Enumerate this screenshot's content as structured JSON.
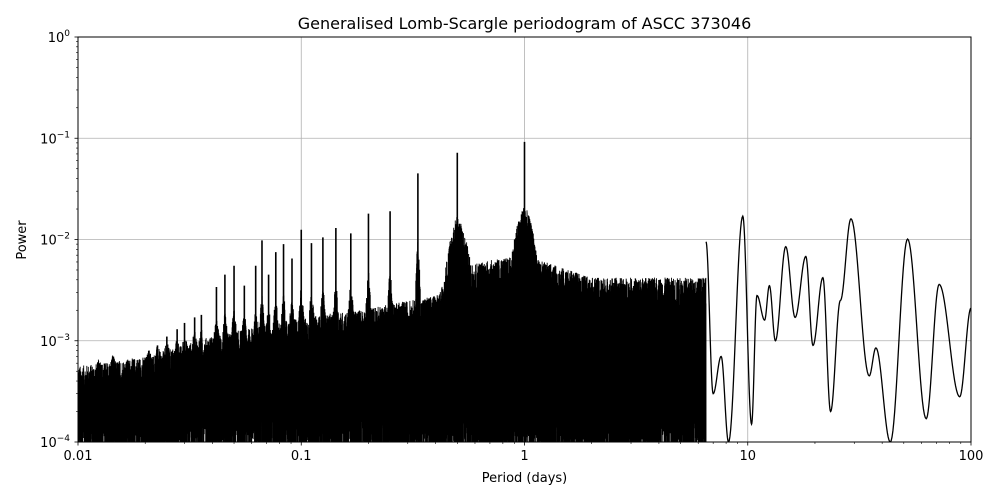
{
  "chart_data": {
    "type": "line",
    "title": "Generalised Lomb-Scargle periodogram of ASCC 373046",
    "xlabel": "Period (days)",
    "ylabel": "Power",
    "xscale": "log",
    "yscale": "log",
    "xlim": [
      0.01,
      100
    ],
    "ylim": [
      0.0001,
      1
    ],
    "grid": true,
    "legend": null,
    "line_color": "#000000",
    "x_ticks": [
      {
        "value": 0.01,
        "label": "0.01"
      },
      {
        "value": 0.1,
        "label": "0.1"
      },
      {
        "value": 1,
        "label": "1"
      },
      {
        "value": 10,
        "label": "10"
      },
      {
        "value": 100,
        "label": "100"
      }
    ],
    "y_ticks": [
      {
        "value": 0.0001,
        "base": "10",
        "exp": "−4"
      },
      {
        "value": 0.001,
        "base": "10",
        "exp": "−3"
      },
      {
        "value": 0.01,
        "base": "10",
        "exp": "−2"
      },
      {
        "value": 0.1,
        "base": "10",
        "exp": "−1"
      },
      {
        "value": 1,
        "base": "10",
        "exp": "0"
      }
    ],
    "noise_floor_envelope": [
      {
        "x": 0.01,
        "y": 0.0004
      },
      {
        "x": 0.02,
        "y": 0.0005
      },
      {
        "x": 0.04,
        "y": 0.0008
      },
      {
        "x": 0.1,
        "y": 0.0012
      },
      {
        "x": 0.2,
        "y": 0.0015
      },
      {
        "x": 0.4,
        "y": 0.002
      },
      {
        "x": 0.5,
        "y": 0.004
      },
      {
        "x": 1.0,
        "y": 0.005
      },
      {
        "x": 2.0,
        "y": 0.003
      },
      {
        "x": 5.0,
        "y": 0.003
      }
    ],
    "alias_peaks": [
      {
        "x": 1.0,
        "y": 0.092
      },
      {
        "x": 0.5,
        "y": 0.072
      },
      {
        "x": 0.333,
        "y": 0.045
      },
      {
        "x": 0.25,
        "y": 0.019
      },
      {
        "x": 0.2,
        "y": 0.018
      },
      {
        "x": 0.1667,
        "y": 0.0115
      },
      {
        "x": 0.1429,
        "y": 0.013
      },
      {
        "x": 0.125,
        "y": 0.0105
      },
      {
        "x": 0.1111,
        "y": 0.0092
      },
      {
        "x": 0.1,
        "y": 0.0125
      },
      {
        "x": 0.0909,
        "y": 0.0065
      },
      {
        "x": 0.0833,
        "y": 0.009
      },
      {
        "x": 0.0769,
        "y": 0.0075
      },
      {
        "x": 0.0714,
        "y": 0.0045
      },
      {
        "x": 0.0667,
        "y": 0.0098
      },
      {
        "x": 0.0625,
        "y": 0.0055
      },
      {
        "x": 0.0556,
        "y": 0.0035
      },
      {
        "x": 0.05,
        "y": 0.0055
      },
      {
        "x": 0.0455,
        "y": 0.0045
      },
      {
        "x": 0.0417,
        "y": 0.0034
      },
      {
        "x": 0.0357,
        "y": 0.0018
      },
      {
        "x": 0.0333,
        "y": 0.0017
      },
      {
        "x": 0.03,
        "y": 0.0015
      },
      {
        "x": 0.0278,
        "y": 0.0013
      },
      {
        "x": 0.025,
        "y": 0.0011
      },
      {
        "x": 0.0227,
        "y": 0.0009
      },
      {
        "x": 0.0208,
        "y": 0.0008
      },
      {
        "x": 0.0143,
        "y": 0.0007
      },
      {
        "x": 0.0125,
        "y": 0.0006
      }
    ],
    "long_period_curve": [
      {
        "x": 6.5,
        "y": 0.0095
      },
      {
        "x": 7.0,
        "y": 0.0003
      },
      {
        "x": 7.6,
        "y": 0.0007
      },
      {
        "x": 8.2,
        "y": 0.0001
      },
      {
        "x": 9.5,
        "y": 0.017
      },
      {
        "x": 10.4,
        "y": 0.00015
      },
      {
        "x": 11.0,
        "y": 0.0028
      },
      {
        "x": 11.9,
        "y": 0.0016
      },
      {
        "x": 12.5,
        "y": 0.0035
      },
      {
        "x": 13.3,
        "y": 0.001
      },
      {
        "x": 14.8,
        "y": 0.0085
      },
      {
        "x": 16.3,
        "y": 0.0017
      },
      {
        "x": 18.2,
        "y": 0.0068
      },
      {
        "x": 19.6,
        "y": 0.0009
      },
      {
        "x": 21.7,
        "y": 0.0042
      },
      {
        "x": 23.5,
        "y": 0.0002
      },
      {
        "x": 26.0,
        "y": 0.0025
      },
      {
        "x": 29.0,
        "y": 0.016
      },
      {
        "x": 35.0,
        "y": 0.00045
      },
      {
        "x": 37.5,
        "y": 0.00085
      },
      {
        "x": 43.5,
        "y": 0.0001
      },
      {
        "x": 52.0,
        "y": 0.0101
      },
      {
        "x": 63.0,
        "y": 0.00017
      },
      {
        "x": 72.0,
        "y": 0.0036
      },
      {
        "x": 89.0,
        "y": 0.00028
      },
      {
        "x": 100.0,
        "y": 0.0021
      }
    ]
  }
}
